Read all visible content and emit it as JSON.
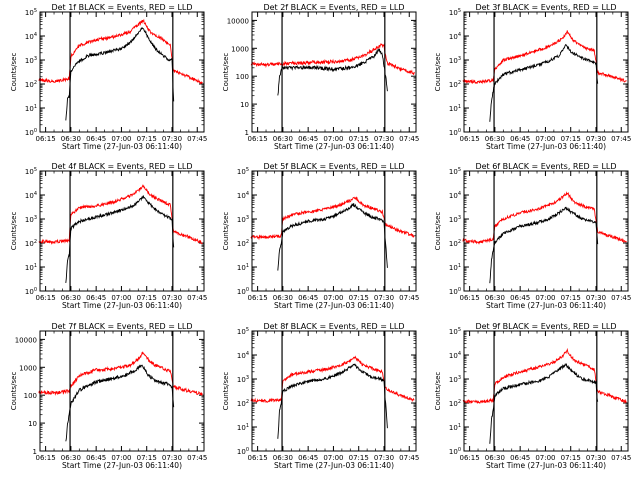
{
  "chart_data": {
    "type": "line",
    "time_ticks": [
      "06:15",
      "06:30",
      "06:45",
      "07:00",
      "07:15",
      "07:30",
      "07:45"
    ],
    "xlabel": "Start Time (27-Jun-03 06:11:40)",
    "ylabel": "Counts/sec",
    "yscale": "log",
    "series_colors": {
      "events": "#000000",
      "lld": "#ff0000"
    },
    "panels": [
      {
        "title": "Det 1f  BLACK = Events, RED = LLD",
        "ylim": [
          1,
          100000
        ],
        "ytick_labels": [
          "10^0",
          "10^1",
          "10^2",
          "10^3",
          "10^4",
          "10^5"
        ],
        "series": [
          {
            "name": "BLACK = Events",
            "x": [
              "06:27",
              "06:28",
              "06:29",
              "06:30",
              "06:33",
              "06:40",
              "06:50",
              "07:00",
              "07:05",
              "07:10",
              "07:13",
              "07:16",
              "07:20",
              "07:25",
              "07:28",
              "07:30",
              "07:31"
            ],
            "y": [
              3,
              25,
              30,
              300,
              700,
              1500,
              2000,
              3000,
              5000,
              14000,
              22000,
              8000,
              3000,
              1500,
              1000,
              1000,
              20
            ]
          },
          {
            "name": "RED = LLD",
            "x": [
              "06:11",
              "06:20",
              "06:29",
              "06:30",
              "06:35",
              "06:45",
              "06:55",
              "07:05",
              "07:10",
              "07:13",
              "07:17",
              "07:25",
              "07:29",
              "07:31",
              "07:40",
              "07:48"
            ],
            "y": [
              150,
              130,
              160,
              1400,
              4000,
              7000,
              9000,
              15000,
              30000,
              45000,
              15000,
              7000,
              4000,
              350,
              200,
              110
            ]
          }
        ]
      },
      {
        "title": "Det 2f  BLACK = Events, RED = LLD",
        "ylim": [
          1,
          20000
        ],
        "ytick_labels": [
          "1",
          "10",
          "100",
          "1000",
          "10000"
        ],
        "series": [
          {
            "name": "BLACK = Events",
            "x": [
              "06:27",
              "06:28",
              "06:29",
              "06:30",
              "06:40",
              "06:50",
              "07:00",
              "07:10",
              "07:18",
              "07:24",
              "07:27",
              "07:29",
              "07:31",
              "07:32"
            ],
            "y": [
              20,
              100,
              150,
              200,
              200,
              200,
              180,
              200,
              300,
              500,
              900,
              600,
              100,
              30
            ]
          },
          {
            "name": "RED = LLD",
            "x": [
              "06:11",
              "06:20",
              "06:29",
              "06:30",
              "06:40",
              "06:50",
              "07:00",
              "07:10",
              "07:18",
              "07:24",
              "07:28",
              "07:30",
              "07:32",
              "07:40",
              "07:48"
            ],
            "y": [
              280,
              250,
              280,
              280,
              300,
              320,
              330,
              380,
              550,
              900,
              1300,
              1200,
              300,
              180,
              130
            ]
          }
        ]
      },
      {
        "title": "Det 3f  BLACK = Events, RED = LLD",
        "ylim": [
          1,
          100000
        ],
        "ytick_labels": [
          "10^0",
          "10^1",
          "10^2",
          "10^3",
          "10^4",
          "10^5"
        ],
        "series": [
          {
            "name": "BLACK = Events",
            "x": [
              "06:27",
              "06:28",
              "06:29",
              "06:30",
              "06:35",
              "06:45",
              "06:55",
              "07:02",
              "07:08",
              "07:12",
              "07:16",
              "07:22",
              "07:28",
              "07:30",
              "07:31"
            ],
            "y": [
              3,
              20,
              50,
              100,
              250,
              400,
              600,
              900,
              1500,
              4000,
              2000,
              1200,
              800,
              700,
              100
            ]
          },
          {
            "name": "RED = LLD",
            "x": [
              "06:11",
              "06:20",
              "06:29",
              "06:30",
              "06:35",
              "06:45",
              "06:55",
              "07:05",
              "07:10",
              "07:13",
              "07:17",
              "07:25",
              "07:29",
              "07:31",
              "07:40",
              "07:48"
            ],
            "y": [
              130,
              120,
              140,
              400,
              1000,
              1500,
              2500,
              4500,
              8000,
              15000,
              6000,
              3000,
              2500,
              300,
              200,
              130
            ]
          }
        ]
      },
      {
        "title": "Det 4f  BLACK = Events, RED = LLD",
        "ylim": [
          1,
          100000
        ],
        "ytick_labels": [
          "10^0",
          "10^1",
          "10^2",
          "10^3",
          "10^4",
          "10^5"
        ],
        "series": [
          {
            "name": "BLACK = Events",
            "x": [
              "06:27",
              "06:28",
              "06:29",
              "06:30",
              "06:35",
              "06:45",
              "06:55",
              "07:05",
              "07:10",
              "07:13",
              "07:17",
              "07:23",
              "07:28",
              "07:30",
              "07:31"
            ],
            "y": [
              2,
              20,
              30,
              400,
              800,
              1200,
              1800,
              3000,
              5000,
              9000,
              4000,
              1800,
              1200,
              1000,
              60
            ]
          },
          {
            "name": "RED = LLD",
            "x": [
              "06:11",
              "06:20",
              "06:29",
              "06:30",
              "06:35",
              "06:45",
              "06:55",
              "07:05",
              "07:10",
              "07:13",
              "07:17",
              "07:25",
              "07:29",
              "07:31",
              "07:40",
              "07:48"
            ],
            "y": [
              120,
              110,
              130,
              1500,
              3000,
              3500,
              5000,
              9000,
              15000,
              25000,
              10000,
              5000,
              4000,
              300,
              180,
              100
            ]
          }
        ]
      },
      {
        "title": "Det 5f  BLACK = Events, RED = LLD",
        "ylim": [
          1,
          100000
        ],
        "ytick_labels": [
          "10^0",
          "10^1",
          "10^2",
          "10^3",
          "10^4",
          "10^5"
        ],
        "series": [
          {
            "name": "BLACK = Events",
            "x": [
              "06:27",
              "06:28",
              "06:29",
              "06:30",
              "06:35",
              "06:45",
              "06:55",
              "07:02",
              "07:08",
              "07:12",
              "07:17",
              "07:23",
              "07:28",
              "07:30",
              "07:32"
            ],
            "y": [
              8,
              50,
              100,
              300,
              500,
              800,
              1000,
              1500,
              2500,
              4000,
              2000,
              1200,
              1000,
              800,
              10
            ]
          },
          {
            "name": "RED = LLD",
            "x": [
              "06:11",
              "06:20",
              "06:29",
              "06:30",
              "06:35",
              "06:45",
              "06:55",
              "07:05",
              "07:10",
              "07:13",
              "07:17",
              "07:25",
              "07:29",
              "07:31",
              "07:40",
              "07:48"
            ],
            "y": [
              180,
              170,
              200,
              1000,
              1500,
              2000,
              2500,
              4000,
              6000,
              8000,
              4000,
              2500,
              2000,
              600,
              300,
              200
            ]
          }
        ]
      },
      {
        "title": "Det 6f  BLACK = Events, RED = LLD",
        "ylim": [
          1,
          100000
        ],
        "ytick_labels": [
          "10^0",
          "10^1",
          "10^2",
          "10^3",
          "10^4",
          "10^5"
        ],
        "series": [
          {
            "name": "BLACK = Events",
            "x": [
              "06:27",
              "06:28",
              "06:29",
              "06:30",
              "06:35",
              "06:45",
              "06:55",
              "07:02",
              "07:08",
              "07:12",
              "07:16",
              "07:22",
              "07:28",
              "07:30",
              "07:31"
            ],
            "y": [
              2,
              20,
              50,
              100,
              250,
              500,
              700,
              1000,
              1800,
              3000,
              1800,
              1000,
              800,
              700,
              100
            ]
          },
          {
            "name": "RED = LLD",
            "x": [
              "06:11",
              "06:20",
              "06:29",
              "06:30",
              "06:35",
              "06:45",
              "06:55",
              "07:05",
              "07:10",
              "07:13",
              "07:17",
              "07:25",
              "07:29",
              "07:31",
              "07:40",
              "07:48"
            ],
            "y": [
              130,
              110,
              140,
              500,
              1000,
              1800,
              2500,
              4500,
              8000,
              12000,
              5000,
              3000,
              2500,
              300,
              180,
              110
            ]
          }
        ]
      },
      {
        "title": "Det 7f  BLACK = Events, RED = LLD",
        "ylim": [
          1,
          20000
        ],
        "ytick_labels": [
          "1",
          "10",
          "100",
          "1000",
          "10000"
        ],
        "series": [
          {
            "name": "BLACK = Events",
            "x": [
              "06:27",
              "06:28",
              "06:29",
              "06:30",
              "06:35",
              "06:45",
              "06:55",
              "07:02",
              "07:08",
              "07:12",
              "07:16",
              "07:22",
              "07:28",
              "07:30",
              "07:31"
            ],
            "y": [
              2,
              10,
              20,
              50,
              150,
              300,
              400,
              500,
              800,
              1200,
              500,
              300,
              250,
              200,
              40
            ]
          },
          {
            "name": "RED = LLD",
            "x": [
              "06:11",
              "06:20",
              "06:29",
              "06:30",
              "06:35",
              "06:45",
              "06:55",
              "07:05",
              "07:10",
              "07:13",
              "07:17",
              "07:25",
              "07:29",
              "07:31",
              "07:40",
              "07:48"
            ],
            "y": [
              130,
              120,
              140,
              200,
              500,
              800,
              900,
              1200,
              2000,
              3500,
              1500,
              900,
              700,
              200,
              140,
              110
            ]
          }
        ]
      },
      {
        "title": "Det 8f  BLACK = Events, RED = LLD",
        "ylim": [
          1,
          100000
        ],
        "ytick_labels": [
          "10^0",
          "10^1",
          "10^2",
          "10^3",
          "10^4",
          "10^5"
        ],
        "series": [
          {
            "name": "BLACK = Events",
            "x": [
              "06:27",
              "06:28",
              "06:29",
              "06:30",
              "06:35",
              "06:45",
              "06:55",
              "07:02",
              "07:08",
              "07:12",
              "07:17",
              "07:23",
              "07:28",
              "07:30",
              "07:32"
            ],
            "y": [
              3,
              50,
              100,
              300,
              500,
              800,
              1000,
              1500,
              2500,
              4000,
              2000,
              1200,
              1000,
              800,
              10
            ]
          },
          {
            "name": "RED = LLD",
            "x": [
              "06:11",
              "06:20",
              "06:29",
              "06:30",
              "06:35",
              "06:45",
              "06:55",
              "07:05",
              "07:10",
              "07:13",
              "07:17",
              "07:25",
              "07:29",
              "07:31",
              "07:40",
              "07:48"
            ],
            "y": [
              130,
              120,
              140,
              800,
              1500,
              2000,
              2500,
              4000,
              6000,
              8000,
              4000,
              2500,
              2000,
              400,
              200,
              130
            ]
          }
        ]
      },
      {
        "title": "Det 9f  BLACK = Events, RED = LLD",
        "ylim": [
          1,
          100000
        ],
        "ytick_labels": [
          "10^0",
          "10^1",
          "10^2",
          "10^3",
          "10^4",
          "10^5"
        ],
        "series": [
          {
            "name": "BLACK = Events",
            "x": [
              "06:27",
              "06:28",
              "06:29",
              "06:30",
              "06:35",
              "06:45",
              "06:55",
              "07:02",
              "07:08",
              "07:12",
              "07:16",
              "07:22",
              "07:28",
              "07:30",
              "07:31"
            ],
            "y": [
              2,
              20,
              50,
              200,
              400,
              600,
              800,
              1200,
              2500,
              4000,
              2000,
              1000,
              800,
              700,
              100
            ]
          },
          {
            "name": "RED = LLD",
            "x": [
              "06:11",
              "06:20",
              "06:29",
              "06:30",
              "06:35",
              "06:45",
              "06:55",
              "07:05",
              "07:10",
              "07:13",
              "07:17",
              "07:25",
              "07:29",
              "07:31",
              "07:40",
              "07:48"
            ],
            "y": [
              120,
              110,
              130,
              600,
              1200,
              2000,
              3000,
              5000,
              9000,
              15000,
              6000,
              3500,
              2500,
              300,
              180,
              110
            ]
          }
        ]
      }
    ]
  }
}
